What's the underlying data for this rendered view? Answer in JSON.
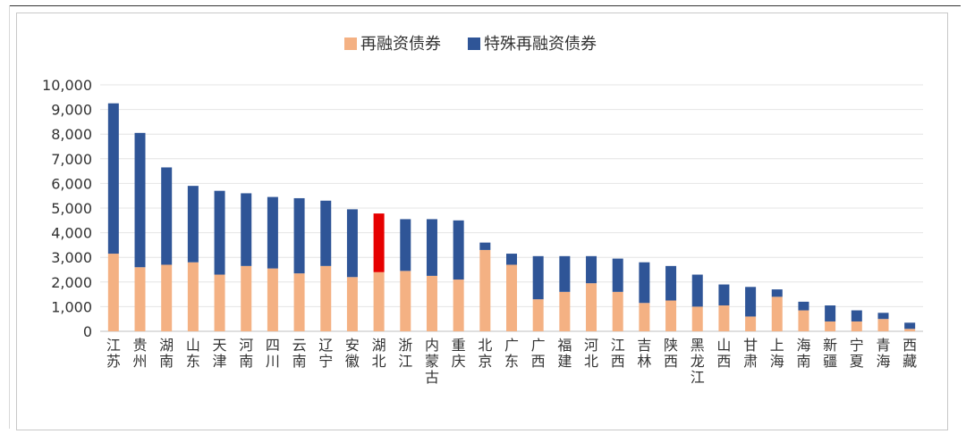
{
  "chart_data": {
    "type": "bar",
    "stacked": true,
    "title": "",
    "xlabel": "",
    "ylabel": "",
    "ylim": [
      0,
      10000
    ],
    "yticks": [
      "0",
      "1,000",
      "2,000",
      "3,000",
      "4,000",
      "5,000",
      "6,000",
      "7,000",
      "8,000",
      "9,000",
      "10,000"
    ],
    "grid": true,
    "legend_position": "top-center",
    "categories": [
      "江苏",
      "贵州",
      "湖南",
      "山东",
      "天津",
      "河南",
      "四川",
      "云南",
      "辽宁",
      "安徽",
      "湖北",
      "浙江",
      "内蒙古",
      "重庆",
      "北京",
      "广东",
      "广西",
      "福建",
      "河北",
      "江西",
      "吉林",
      "陕西",
      "黑龙江",
      "山西",
      "甘肃",
      "上海",
      "海南",
      "新疆",
      "宁夏",
      "青海",
      "西藏"
    ],
    "series": [
      {
        "name": "再融资债券",
        "color": "#F4B183",
        "values": [
          3150,
          2600,
          2700,
          2800,
          2300,
          2650,
          2550,
          2350,
          2650,
          2200,
          2400,
          2450,
          2250,
          2100,
          3300,
          2700,
          1300,
          1600,
          1950,
          1600,
          1150,
          1250,
          1000,
          1050,
          600,
          1400,
          850,
          400,
          400,
          500,
          100
        ],
        "highlight_values": [
          null,
          null,
          null,
          null,
          null,
          null,
          null,
          null,
          null,
          null,
          2400,
          null,
          null,
          null,
          null,
          null,
          null,
          null,
          null,
          null,
          null,
          null,
          null,
          null,
          null,
          null,
          null,
          null,
          null,
          null,
          null
        ]
      },
      {
        "name": "特殊再融资债券",
        "color": "#2F5597",
        "values": [
          6100,
          5450,
          3950,
          3100,
          3400,
          2950,
          2900,
          3050,
          2650,
          2750,
          2380,
          2100,
          2300,
          2400,
          300,
          450,
          1750,
          1450,
          1100,
          1350,
          1650,
          1400,
          1300,
          850,
          1200,
          300,
          350,
          650,
          450,
          250,
          250
        ],
        "highlight_color": "#E60000",
        "highlight_index": 10
      }
    ]
  }
}
